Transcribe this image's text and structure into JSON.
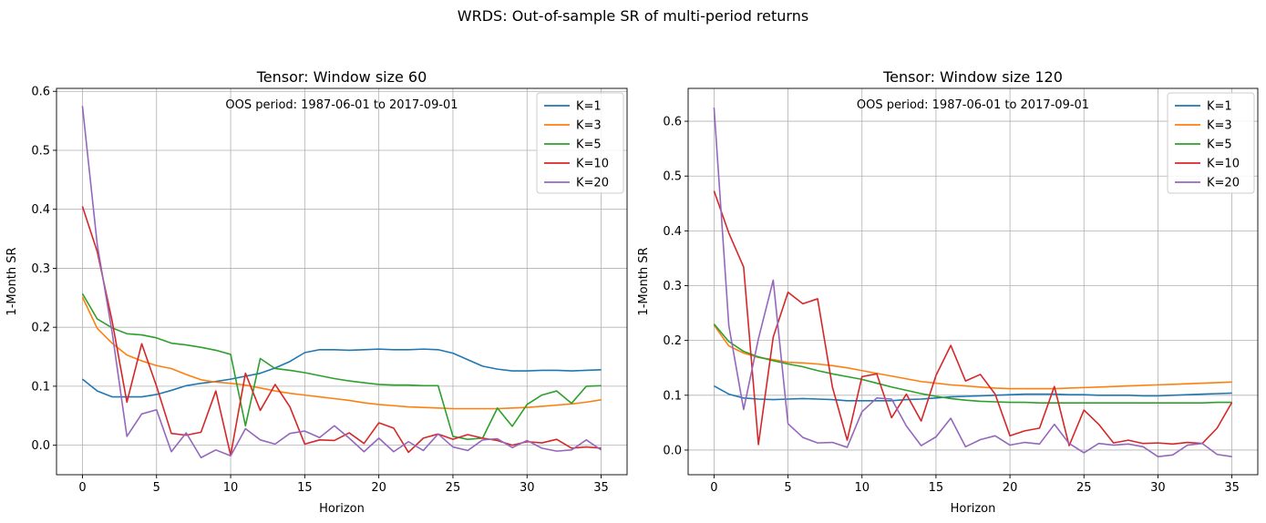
{
  "suptitle": "WRDS: Out-of-sample SR of multi-period returns",
  "colors": {
    "K=1": "#1f77b4",
    "K=3": "#ff7f0e",
    "K=5": "#2ca02c",
    "K=10": "#d62728",
    "K=20": "#9467bd",
    "grid": "#b0b0b0"
  },
  "chart_data": [
    {
      "type": "line",
      "title": "Tensor: Window size 60",
      "xlabel": "Horizon",
      "ylabel": "1-Month SR",
      "annotation": "OOS period: 1987-06-01 to 2017-09-01",
      "xlim": [
        -1.75,
        36.75
      ],
      "ylim": [
        -0.05,
        0.605
      ],
      "xticks": [
        0,
        5,
        10,
        15,
        20,
        25,
        30,
        35
      ],
      "yticks": [
        0.0,
        0.1,
        0.2,
        0.3,
        0.4,
        0.5,
        0.6
      ],
      "grid": true,
      "legend": "top-right",
      "series": [
        {
          "name": "K=1",
          "values": [
            0.112,
            0.092,
            0.082,
            0.082,
            0.082,
            0.086,
            0.093,
            0.101,
            0.105,
            0.108,
            0.112,
            0.117,
            0.122,
            0.131,
            0.142,
            0.157,
            0.162,
            0.162,
            0.161,
            0.162,
            0.163,
            0.162,
            0.162,
            0.163,
            0.162,
            0.156,
            0.145,
            0.134,
            0.129,
            0.126,
            0.126,
            0.127,
            0.127,
            0.126,
            0.127,
            0.128
          ]
        },
        {
          "name": "K=3",
          "values": [
            0.251,
            0.198,
            0.173,
            0.153,
            0.143,
            0.135,
            0.13,
            0.12,
            0.111,
            0.107,
            0.105,
            0.102,
            0.097,
            0.092,
            0.088,
            0.085,
            0.082,
            0.079,
            0.076,
            0.072,
            0.069,
            0.067,
            0.065,
            0.064,
            0.063,
            0.062,
            0.062,
            0.062,
            0.062,
            0.063,
            0.064,
            0.066,
            0.068,
            0.07,
            0.073,
            0.077
          ]
        },
        {
          "name": "K=5",
          "values": [
            0.257,
            0.214,
            0.199,
            0.189,
            0.187,
            0.182,
            0.173,
            0.17,
            0.166,
            0.161,
            0.154,
            0.033,
            0.147,
            0.13,
            0.127,
            0.123,
            0.118,
            0.113,
            0.109,
            0.106,
            0.103,
            0.102,
            0.102,
            0.101,
            0.101,
            0.015,
            0.01,
            0.012,
            0.063,
            0.032,
            0.069,
            0.085,
            0.092,
            0.071,
            0.1,
            0.101
          ]
        },
        {
          "name": "K=10",
          "values": [
            0.405,
            0.328,
            0.211,
            0.073,
            0.172,
            0.1,
            0.02,
            0.017,
            0.022,
            0.092,
            -0.017,
            0.122,
            0.059,
            0.103,
            0.065,
            0.002,
            0.009,
            0.008,
            0.021,
            0.003,
            0.038,
            0.029,
            -0.012,
            0.012,
            0.019,
            0.01,
            0.018,
            0.012,
            0.008,
            0.0,
            0.006,
            0.004,
            0.01,
            -0.005,
            -0.003,
            -0.005
          ]
        },
        {
          "name": "K=20",
          "values": [
            0.575,
            0.34,
            0.192,
            0.015,
            0.053,
            0.06,
            -0.011,
            0.021,
            -0.021,
            -0.008,
            -0.018,
            0.028,
            0.009,
            0.002,
            0.02,
            0.024,
            0.013,
            0.033,
            0.012,
            -0.011,
            0.012,
            -0.011,
            0.006,
            -0.009,
            0.019,
            -0.003,
            -0.009,
            0.009,
            0.011,
            -0.004,
            0.008,
            -0.005,
            -0.01,
            -0.008,
            0.009,
            -0.008
          ]
        }
      ]
    },
    {
      "type": "line",
      "title": "Tensor: Window size 120",
      "xlabel": "Horizon",
      "ylabel": "1-Month SR",
      "annotation": "OOS period: 1987-06-01 to 2017-09-01",
      "xlim": [
        -1.75,
        36.75
      ],
      "ylim": [
        -0.045,
        0.66
      ],
      "xticks": [
        0,
        5,
        10,
        15,
        20,
        25,
        30,
        35
      ],
      "yticks": [
        0.0,
        0.1,
        0.2,
        0.3,
        0.4,
        0.5,
        0.6
      ],
      "grid": true,
      "legend": "top-right",
      "series": [
        {
          "name": "K=1",
          "values": [
            0.117,
            0.102,
            0.095,
            0.093,
            0.092,
            0.093,
            0.094,
            0.093,
            0.092,
            0.09,
            0.09,
            0.09,
            0.09,
            0.092,
            0.093,
            0.095,
            0.097,
            0.098,
            0.099,
            0.1,
            0.101,
            0.102,
            0.102,
            0.102,
            0.101,
            0.101,
            0.1,
            0.1,
            0.1,
            0.099,
            0.099,
            0.1,
            0.101,
            0.102,
            0.103,
            0.104
          ]
        },
        {
          "name": "K=3",
          "values": [
            0.228,
            0.19,
            0.177,
            0.169,
            0.165,
            0.16,
            0.159,
            0.157,
            0.154,
            0.15,
            0.145,
            0.14,
            0.135,
            0.13,
            0.125,
            0.122,
            0.119,
            0.117,
            0.115,
            0.113,
            0.112,
            0.112,
            0.112,
            0.112,
            0.113,
            0.114,
            0.115,
            0.116,
            0.117,
            0.118,
            0.119,
            0.12,
            0.121,
            0.122,
            0.123,
            0.124
          ]
        },
        {
          "name": "K=5",
          "values": [
            0.23,
            0.198,
            0.18,
            0.17,
            0.163,
            0.157,
            0.152,
            0.145,
            0.139,
            0.134,
            0.129,
            0.122,
            0.115,
            0.109,
            0.103,
            0.098,
            0.094,
            0.091,
            0.089,
            0.088,
            0.087,
            0.087,
            0.086,
            0.086,
            0.086,
            0.086,
            0.086,
            0.086,
            0.086,
            0.086,
            0.086,
            0.086,
            0.086,
            0.086,
            0.087,
            0.087
          ]
        },
        {
          "name": "K=10",
          "values": [
            0.473,
            0.396,
            0.334,
            0.01,
            0.206,
            0.288,
            0.267,
            0.276,
            0.115,
            0.018,
            0.134,
            0.139,
            0.059,
            0.102,
            0.053,
            0.136,
            0.191,
            0.126,
            0.138,
            0.102,
            0.026,
            0.035,
            0.04,
            0.116,
            0.008,
            0.073,
            0.047,
            0.013,
            0.018,
            0.012,
            0.013,
            0.011,
            0.014,
            0.012,
            0.04,
            0.087
          ]
        },
        {
          "name": "K=20",
          "values": [
            0.625,
            0.227,
            0.074,
            0.203,
            0.31,
            0.048,
            0.023,
            0.013,
            0.014,
            0.005,
            0.07,
            0.095,
            0.093,
            0.044,
            0.008,
            0.024,
            0.058,
            0.006,
            0.019,
            0.026,
            0.009,
            0.014,
            0.011,
            0.047,
            0.012,
            -0.005,
            0.012,
            0.009,
            0.011,
            0.006,
            -0.012,
            -0.009,
            0.009,
            0.012,
            -0.008,
            -0.012
          ]
        }
      ]
    }
  ]
}
